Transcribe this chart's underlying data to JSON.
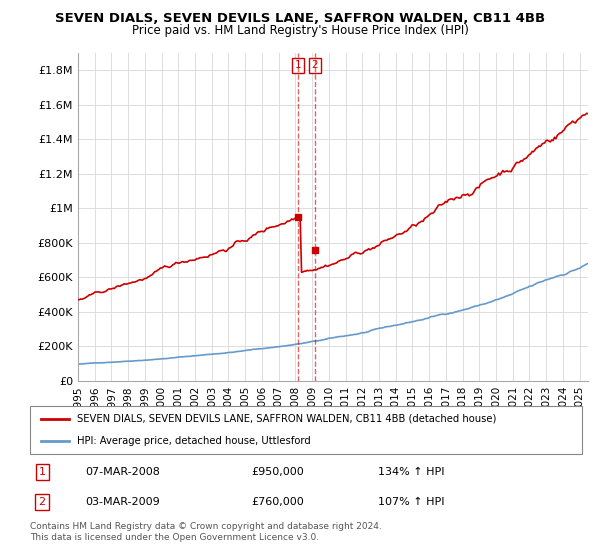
{
  "title": "SEVEN DIALS, SEVEN DEVILS LANE, SAFFRON WALDEN, CB11 4BB",
  "subtitle": "Price paid vs. HM Land Registry's House Price Index (HPI)",
  "ylabel_ticks": [
    "£0",
    "£200K",
    "£400K",
    "£600K",
    "£800K",
    "£1M",
    "£1.2M",
    "£1.4M",
    "£1.6M",
    "£1.8M"
  ],
  "ylabel_values": [
    0,
    200000,
    400000,
    600000,
    800000,
    1000000,
    1200000,
    1400000,
    1600000,
    1800000
  ],
  "ylim": [
    0,
    1900000
  ],
  "xlim_start": 1995.0,
  "xlim_end": 2025.5,
  "red_line_color": "#cc0000",
  "blue_line_color": "#6699cc",
  "transaction1_x": 2008.18,
  "transaction1_y": 950000,
  "transaction2_x": 2009.17,
  "transaction2_y": 760000,
  "vline_color": "#cc0000",
  "legend_label_red": "SEVEN DIALS, SEVEN DEVILS LANE, SAFFRON WALDEN, CB11 4BB (detached house)",
  "legend_label_blue": "HPI: Average price, detached house, Uttlesford",
  "table_rows": [
    {
      "num": "1",
      "date": "07-MAR-2008",
      "price": "£950,000",
      "hpi": "134% ↑ HPI"
    },
    {
      "num": "2",
      "date": "03-MAR-2009",
      "price": "£760,000",
      "hpi": "107% ↑ HPI"
    }
  ],
  "footer": "Contains HM Land Registry data © Crown copyright and database right 2024.\nThis data is licensed under the Open Government Licence v3.0.",
  "background_color": "#ffffff",
  "grid_color": "#dddddd"
}
